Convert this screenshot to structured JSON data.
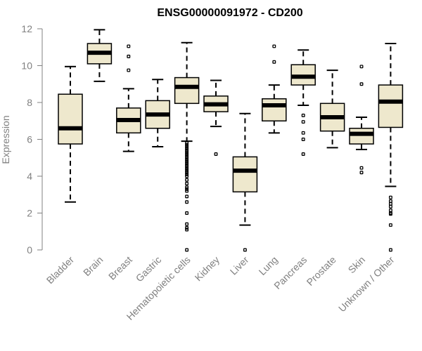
{
  "chart_data": {
    "type": "boxplot",
    "title": "ENSG00000091972 - CD200",
    "xlabel": "",
    "ylabel": "Expression",
    "ylim": [
      0,
      12
    ],
    "yticks": [
      0,
      2,
      4,
      6,
      8,
      10,
      12
    ],
    "box_fill": "#EEE8CD",
    "axis_color": "#808080",
    "categories": [
      "Bladder",
      "Brain",
      "Breast",
      "Gastric",
      "Hematopoietic cells",
      "Kidney",
      "Liver",
      "Lung",
      "Pancreas",
      "Prostate",
      "Skin",
      "Unknown / Other"
    ],
    "boxes": [
      {
        "name": "Bladder",
        "whisker_low": 2.6,
        "q1": 5.75,
        "median": 6.6,
        "q3": 8.45,
        "whisker_high": 9.95,
        "outliers": []
      },
      {
        "name": "Brain",
        "whisker_low": 9.15,
        "q1": 10.1,
        "median": 10.7,
        "q3": 11.2,
        "whisker_high": 11.95,
        "outliers": []
      },
      {
        "name": "Breast",
        "whisker_low": 5.35,
        "q1": 6.35,
        "median": 7.05,
        "q3": 7.7,
        "whisker_high": 8.75,
        "outliers": [
          11.05,
          10.5,
          9.75
        ]
      },
      {
        "name": "Gastric",
        "whisker_low": 5.6,
        "q1": 6.6,
        "median": 7.35,
        "q3": 8.1,
        "whisker_high": 9.25,
        "outliers": []
      },
      {
        "name": "Hematopoietic cells",
        "whisker_low": 5.9,
        "q1": 7.95,
        "median": 8.85,
        "q3": 9.35,
        "whisker_high": 11.25,
        "outliers": [
          5.8,
          5.7,
          5.6,
          5.5,
          5.4,
          5.3,
          5.2,
          5.1,
          5.0,
          4.9,
          4.8,
          4.7,
          4.6,
          4.5,
          4.4,
          4.3,
          4.2,
          4.1,
          4.0,
          3.8,
          3.6,
          3.4,
          3.3,
          3.2,
          2.9,
          2.6,
          2.0,
          1.4,
          1.2,
          1.1,
          0.0
        ]
      },
      {
        "name": "Kidney",
        "whisker_low": 6.7,
        "q1": 7.5,
        "median": 7.9,
        "q3": 8.35,
        "whisker_high": 9.2,
        "outliers": [
          5.2
        ]
      },
      {
        "name": "Liver",
        "whisker_low": 1.35,
        "q1": 3.15,
        "median": 4.3,
        "q3": 5.05,
        "whisker_high": 7.4,
        "outliers": [
          0.0
        ]
      },
      {
        "name": "Lung",
        "whisker_low": 6.35,
        "q1": 7.0,
        "median": 7.85,
        "q3": 8.2,
        "whisker_high": 8.95,
        "outliers": [
          11.05,
          10.2
        ]
      },
      {
        "name": "Pancreas",
        "whisker_low": 7.85,
        "q1": 8.95,
        "median": 9.4,
        "q3": 10.05,
        "whisker_high": 10.85,
        "outliers": [
          7.3,
          6.95,
          6.35,
          6.0,
          5.2
        ]
      },
      {
        "name": "Prostate",
        "whisker_low": 5.55,
        "q1": 6.45,
        "median": 7.2,
        "q3": 7.95,
        "whisker_high": 9.75,
        "outliers": []
      },
      {
        "name": "Skin",
        "whisker_low": 5.45,
        "q1": 5.75,
        "median": 6.3,
        "q3": 6.6,
        "whisker_high": 7.2,
        "outliers": [
          9.95,
          9.0,
          4.45,
          4.2
        ]
      },
      {
        "name": "Unknown / Other",
        "whisker_low": 3.45,
        "q1": 6.65,
        "median": 8.05,
        "q3": 8.95,
        "whisker_high": 11.2,
        "outliers": [
          2.85,
          2.65,
          2.5,
          2.35,
          2.15,
          2.0,
          1.95,
          1.35,
          0.0
        ]
      }
    ]
  }
}
